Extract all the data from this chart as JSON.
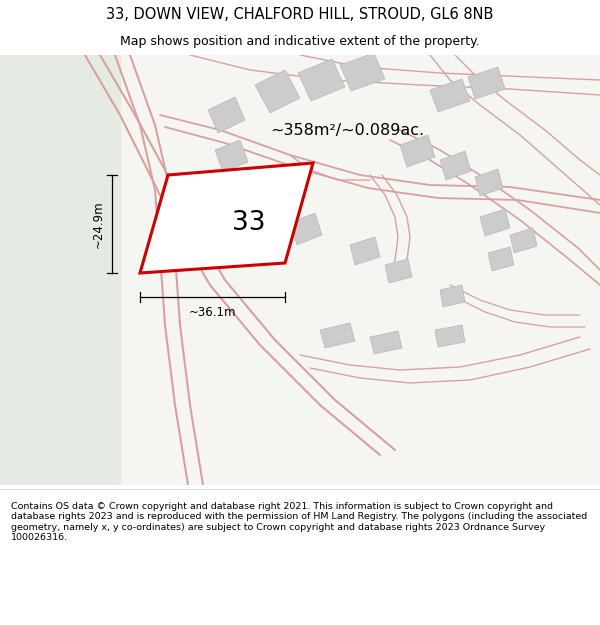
{
  "title_line1": "33, DOWN VIEW, CHALFORD HILL, STROUD, GL6 8NB",
  "title_line2": "Map shows position and indicative extent of the property.",
  "footer_text": "Contains OS data © Crown copyright and database right 2021. This information is subject to Crown copyright and database rights 2023 and is reproduced with the permission of HM Land Registry. The polygons (including the associated geometry, namely x, y co-ordinates) are subject to Crown copyright and database rights 2023 Ordnance Survey 100026316.",
  "area_label": "~358m²/~0.089ac.",
  "width_label": "~36.1m",
  "height_label": "~24.9m",
  "plot_number": "33",
  "map_bg": "#f4f4f0",
  "left_bg": "#e5ebe4",
  "road_color": "#d9a0a0",
  "building_fill": "#cccccc",
  "building_edge": "#b8b8b8",
  "plot_line": "#cc0000",
  "plot_fill": "#ffffff",
  "title_fontsize": 10.5,
  "subtitle_fontsize": 9.0,
  "footer_fontsize": 6.8,
  "area_fontsize": 11.5,
  "dim_fontsize": 8.5,
  "plot_label_fontsize": 19
}
